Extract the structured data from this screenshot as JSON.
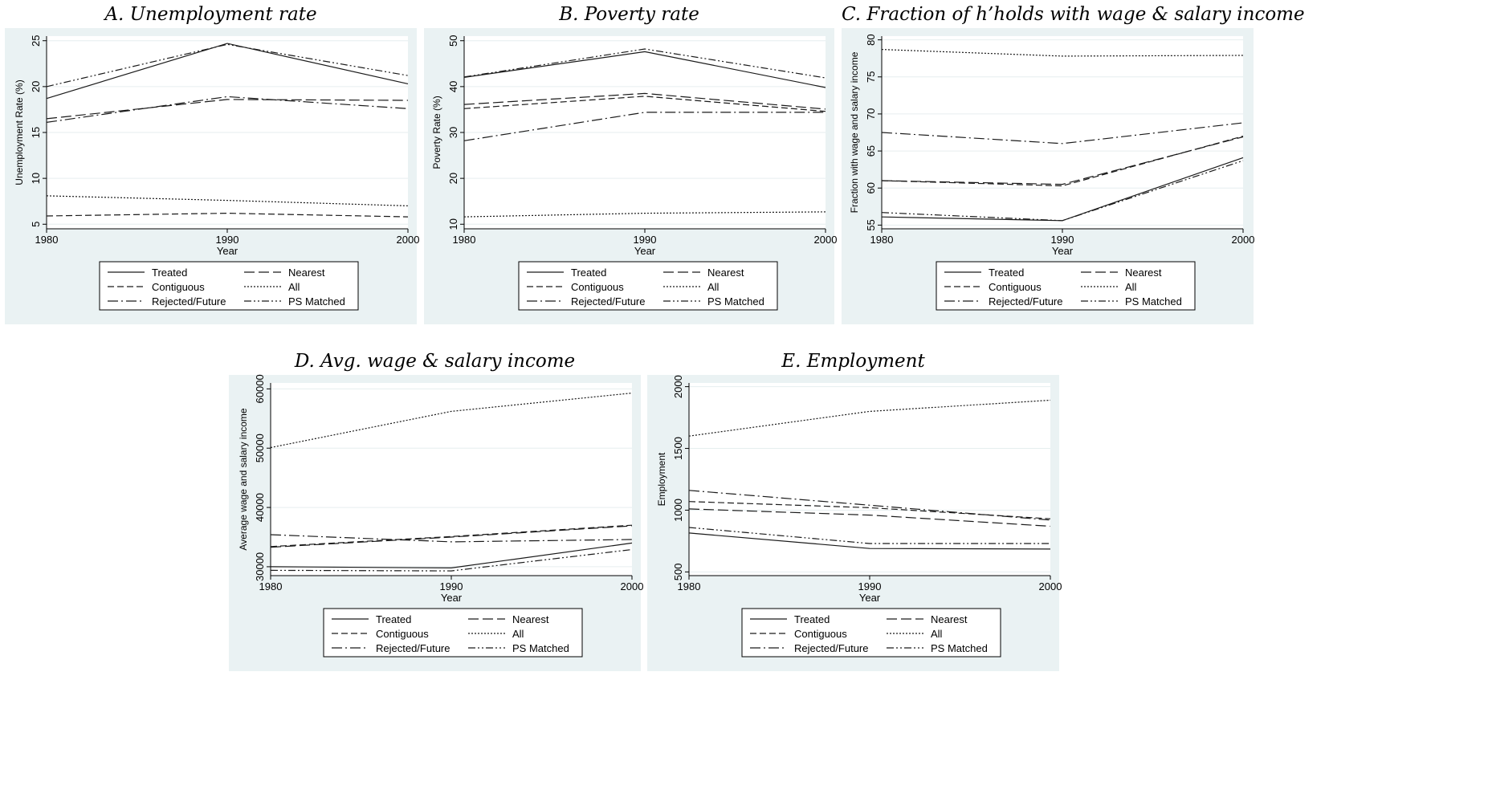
{
  "legend": {
    "labels": [
      "Treated",
      "Nearest",
      "Contiguous",
      "All",
      "Rejected/Future",
      "PS Matched"
    ]
  },
  "chart_data": [
    {
      "id": "A",
      "type": "line",
      "title": "A. Unemployment rate",
      "xlabel": "Year",
      "ylabel": "Unemployment Rate (%)",
      "x": [
        1980,
        1990,
        2000
      ],
      "ylim": [
        4.5,
        25.5
      ],
      "yticks": [
        5,
        10,
        15,
        20,
        25
      ],
      "xticks": [
        1980,
        1990,
        2000
      ],
      "grid": true,
      "legend_position": "bottom",
      "series": [
        {
          "name": "Treated",
          "style": "solid",
          "values": [
            18.7,
            24.7,
            20.3
          ]
        },
        {
          "name": "Nearest",
          "style": "longdash",
          "values": [
            16.5,
            18.6,
            18.5
          ]
        },
        {
          "name": "Contiguous",
          "style": "dash",
          "values": [
            5.9,
            6.2,
            5.8
          ]
        },
        {
          "name": "All",
          "style": "dot",
          "values": [
            8.1,
            7.6,
            7.0
          ]
        },
        {
          "name": "Rejected/Future",
          "style": "dashdot",
          "values": [
            16.1,
            18.9,
            17.6
          ]
        },
        {
          "name": "PS Matched",
          "style": "dashdotdot",
          "values": [
            20.0,
            24.6,
            21.2
          ]
        }
      ]
    },
    {
      "id": "B",
      "type": "line",
      "title": "B. Poverty rate",
      "xlabel": "Year",
      "ylabel": "Poverty Rate (%)",
      "x": [
        1980,
        1990,
        2000
      ],
      "ylim": [
        9,
        51
      ],
      "yticks": [
        10,
        20,
        30,
        40,
        50
      ],
      "xticks": [
        1980,
        1990,
        2000
      ],
      "grid": true,
      "legend_position": "bottom",
      "series": [
        {
          "name": "Treated",
          "style": "solid",
          "values": [
            42.0,
            47.6,
            39.8
          ]
        },
        {
          "name": "Nearest",
          "style": "longdash",
          "values": [
            36.1,
            38.5,
            35.1
          ]
        },
        {
          "name": "Contiguous",
          "style": "dash",
          "values": [
            35.2,
            37.9,
            34.6
          ]
        },
        {
          "name": "All",
          "style": "dot",
          "values": [
            11.6,
            12.4,
            12.7
          ]
        },
        {
          "name": "Rejected/Future",
          "style": "dashdot",
          "values": [
            28.2,
            34.4,
            34.4
          ]
        },
        {
          "name": "PS Matched",
          "style": "dashdotdot",
          "values": [
            42.1,
            48.2,
            41.9
          ]
        }
      ]
    },
    {
      "id": "C",
      "type": "line",
      "title": "C. Fraction of h’holds with wage & salary income",
      "xlabel": "Year",
      "ylabel": "Fraction with wage and salary income",
      "x": [
        1980,
        1990,
        2000
      ],
      "ylim": [
        54.5,
        80.5
      ],
      "yticks": [
        55,
        60,
        65,
        70,
        75,
        80
      ],
      "xticks": [
        1980,
        1990,
        2000
      ],
      "grid": true,
      "legend_position": "bottom",
      "series": [
        {
          "name": "Treated",
          "style": "solid",
          "values": [
            56.1,
            55.6,
            64.1
          ]
        },
        {
          "name": "Nearest",
          "style": "longdash",
          "values": [
            61.0,
            60.5,
            66.9
          ]
        },
        {
          "name": "Contiguous",
          "style": "dash",
          "values": [
            61.0,
            60.3,
            67.0
          ]
        },
        {
          "name": "All",
          "style": "dot",
          "values": [
            78.7,
            77.8,
            77.9
          ]
        },
        {
          "name": "Rejected/Future",
          "style": "dashdot",
          "values": [
            67.5,
            66.0,
            68.8
          ]
        },
        {
          "name": "PS Matched",
          "style": "dashdotdot",
          "values": [
            56.7,
            55.6,
            63.7
          ]
        }
      ]
    },
    {
      "id": "D",
      "type": "line",
      "title": "D. Avg. wage & salary income",
      "xlabel": "Year",
      "ylabel": "Average wage and salary income",
      "x": [
        1980,
        1990,
        2000
      ],
      "ylim": [
        28500,
        61000
      ],
      "yticks": [
        30000,
        40000,
        50000,
        60000
      ],
      "xticks": [
        1980,
        1990,
        2000
      ],
      "grid": true,
      "legend_position": "bottom",
      "series": [
        {
          "name": "Treated",
          "style": "solid",
          "values": [
            30000,
            29800,
            34000
          ]
        },
        {
          "name": "Nearest",
          "style": "longdash",
          "values": [
            33300,
            35000,
            36900
          ]
        },
        {
          "name": "Contiguous",
          "style": "dash",
          "values": [
            33400,
            35100,
            37000
          ]
        },
        {
          "name": "All",
          "style": "dot",
          "values": [
            50100,
            56200,
            59300
          ]
        },
        {
          "name": "Rejected/Future",
          "style": "dashdot",
          "values": [
            35400,
            34200,
            34600
          ]
        },
        {
          "name": "PS Matched",
          "style": "dashdotdot",
          "values": [
            29400,
            29300,
            32900
          ]
        }
      ]
    },
    {
      "id": "E",
      "type": "line",
      "title": "E. Employment",
      "xlabel": "Year",
      "ylabel": "Employment",
      "x": [
        1980,
        1990,
        2000
      ],
      "ylim": [
        470,
        2030
      ],
      "yticks": [
        500,
        1000,
        1500,
        2000
      ],
      "xticks": [
        1980,
        1990,
        2000
      ],
      "grid": true,
      "legend_position": "bottom",
      "series": [
        {
          "name": "Treated",
          "style": "solid",
          "values": [
            815,
            690,
            685
          ]
        },
        {
          "name": "Nearest",
          "style": "longdash",
          "values": [
            1010,
            960,
            870
          ]
        },
        {
          "name": "Contiguous",
          "style": "dash",
          "values": [
            1070,
            1020,
            930
          ]
        },
        {
          "name": "All",
          "style": "dot",
          "values": [
            1600,
            1800,
            1890
          ]
        },
        {
          "name": "Rejected/Future",
          "style": "dashdot",
          "values": [
            1160,
            1040,
            920
          ]
        },
        {
          "name": "PS Matched",
          "style": "dashdotdot",
          "values": [
            860,
            730,
            730
          ]
        }
      ]
    }
  ]
}
